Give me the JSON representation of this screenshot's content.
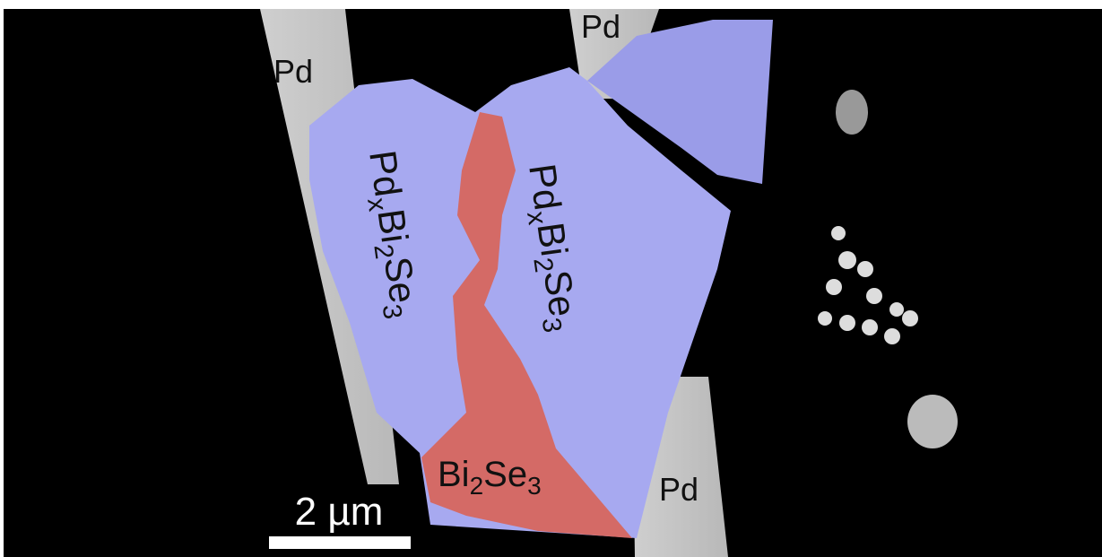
{
  "labels": {
    "pd_top_left": "Pd",
    "pd_top_right": "Pd",
    "pd_bottom_right": "Pd",
    "formula_left": [
      "Pd",
      "x",
      "Bi",
      "2",
      "Se",
      "3"
    ],
    "formula_right": [
      "Pd",
      "x",
      "Bi",
      "2",
      "Se",
      "3"
    ],
    "formula_bottom": [
      "Bi",
      "2",
      "Se",
      "3"
    ],
    "scale_bar": "2 µm"
  }
}
